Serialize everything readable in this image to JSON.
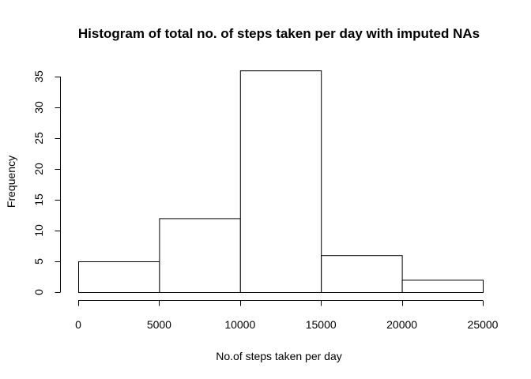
{
  "chart_data": {
    "type": "histogram",
    "title": "Histogram of total no. of steps taken per day with imputed NAs",
    "xlabel": "No.of steps taken per day",
    "ylabel": "Frequency",
    "bins": [
      {
        "from": 0,
        "to": 5000,
        "count": 5
      },
      {
        "from": 5000,
        "to": 10000,
        "count": 12
      },
      {
        "from": 10000,
        "to": 15000,
        "count": 36
      },
      {
        "from": 15000,
        "to": 20000,
        "count": 6
      },
      {
        "from": 20000,
        "to": 25000,
        "count": 2
      }
    ],
    "xlim": [
      0,
      25000
    ],
    "ylim": [
      0,
      35
    ],
    "xticks": [
      0,
      5000,
      10000,
      15000,
      20000,
      25000
    ],
    "yticks": [
      0,
      5,
      10,
      15,
      20,
      25,
      30,
      35
    ],
    "grid": false,
    "colors": {
      "bar_fill": "#ffffff",
      "bar_stroke": "#000000"
    }
  }
}
